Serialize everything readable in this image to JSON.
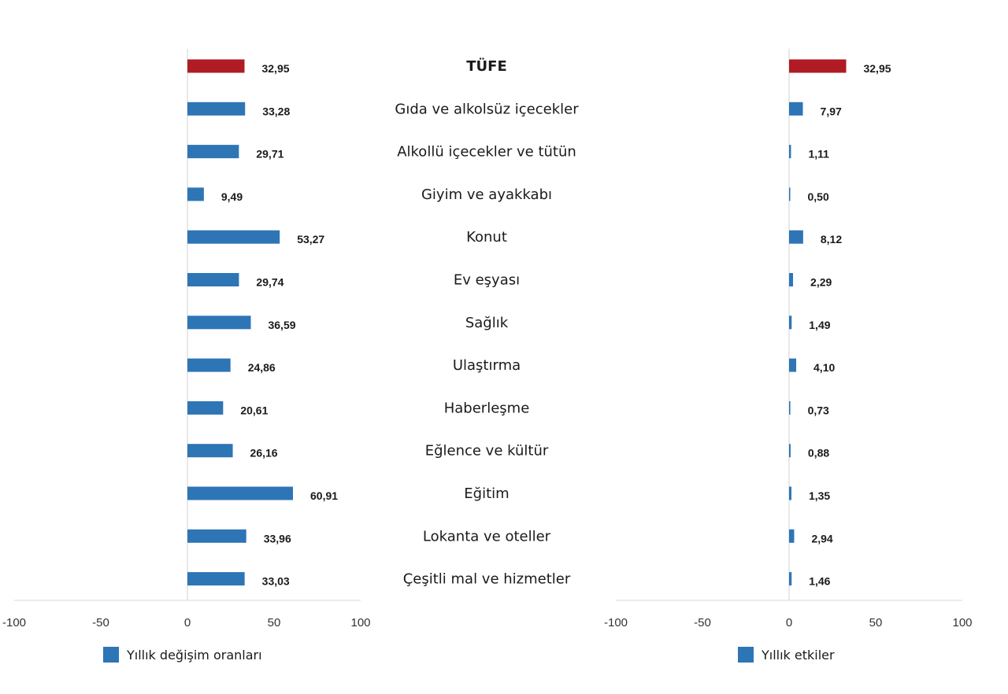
{
  "chart_data": {
    "type": "bar",
    "orientation": "horizontal",
    "categories": [
      "TÜFE",
      "Gıda ve alkolsüz içecekler",
      "Alkollü içecekler ve tütün",
      "Giyim ve ayakkabı",
      "Konut",
      "Ev eşyası",
      "Sağlık",
      "Ulaştırma",
      "Haberleşme",
      "Eğlence ve kültür",
      "Eğitim",
      "Lokanta ve oteller",
      "Çeşitli mal ve hizmetler"
    ],
    "highlight_category_index": 0,
    "colors": {
      "series": "#2e75b6",
      "highlight": "#b01b24"
    },
    "value_labels": {
      "left": [
        "32,95",
        "33,28",
        "29,71",
        "9,49",
        "53,27",
        "29,74",
        "36,59",
        "24,86",
        "20,61",
        "26,16",
        "60,91",
        "33,96",
        "33,03"
      ],
      "right": [
        "32,95",
        "7,97",
        "1,11",
        "0,50",
        "8,12",
        "2,29",
        "1,49",
        "4,10",
        "0,73",
        "0,88",
        "1,35",
        "2,94",
        "1,46"
      ]
    },
    "series": [
      {
        "name": "Yıllık değişim oranları",
        "panel": "left",
        "values": [
          32.95,
          33.28,
          29.71,
          9.49,
          53.27,
          29.74,
          36.59,
          24.86,
          20.61,
          26.16,
          60.91,
          33.96,
          33.03
        ]
      },
      {
        "name": "Yıllık etkiler",
        "panel": "right",
        "values": [
          32.95,
          7.97,
          1.11,
          0.5,
          8.12,
          2.29,
          1.49,
          4.1,
          0.73,
          0.88,
          1.35,
          2.94,
          1.46
        ]
      }
    ],
    "xlim": [
      -100,
      100
    ],
    "xticks": [
      "-100",
      "-50",
      "0",
      "50",
      "100"
    ],
    "grid": false,
    "legend_position": "bottom"
  }
}
